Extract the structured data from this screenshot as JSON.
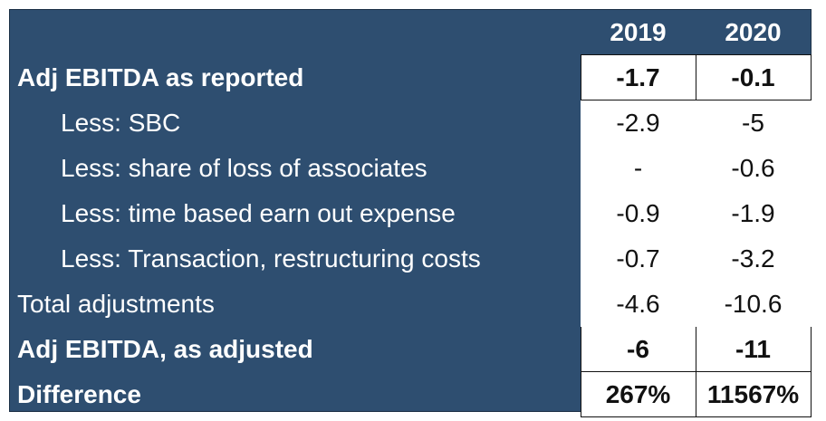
{
  "table": {
    "header": [
      "2019",
      "2020"
    ],
    "rows": [
      {
        "label": "Adj EBITDA as reported",
        "cells": [
          "-1.7",
          "-0.1"
        ],
        "bold": true,
        "indent": false
      },
      {
        "label": "Less: SBC",
        "cells": [
          "-2.9",
          "-5"
        ],
        "bold": false,
        "indent": true
      },
      {
        "label": "Less: share of loss of associates",
        "cells": [
          "-",
          "-0.6"
        ],
        "bold": false,
        "indent": true
      },
      {
        "label": "Less: time based earn out expense",
        "cells": [
          "-0.9",
          "-1.9"
        ],
        "bold": false,
        "indent": true
      },
      {
        "label": "Less: Transaction, restructuring costs",
        "cells": [
          "-0.7",
          "-3.2"
        ],
        "bold": false,
        "indent": true
      },
      {
        "label": "Total adjustments",
        "cells": [
          "-4.6",
          "-10.6"
        ],
        "bold": false,
        "indent": false
      },
      {
        "label": "Adj EBITDA, as adjusted",
        "cells": [
          "-6",
          "-11"
        ],
        "bold": true,
        "indent": false
      },
      {
        "label": "Difference",
        "cells": [
          "267%",
          "11567%"
        ],
        "bold": true,
        "indent": false
      }
    ]
  }
}
